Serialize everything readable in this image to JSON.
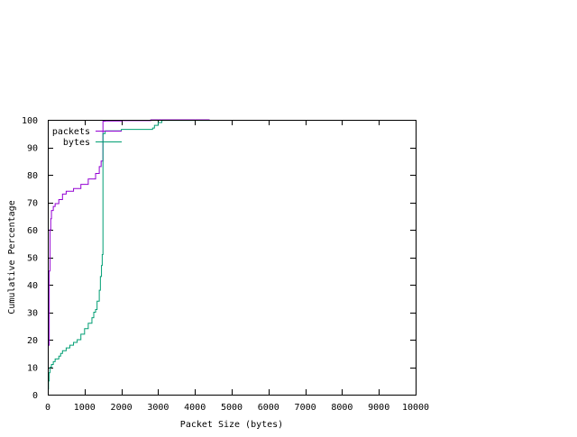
{
  "chart_data": {
    "type": "line",
    "title": "",
    "xlabel": "Packet Size (bytes)",
    "ylabel": "Cumulative Percentage",
    "xlim": [
      0,
      10000
    ],
    "ylim": [
      0,
      100
    ],
    "x_ticks": [
      "0",
      "1000",
      "2000",
      "3000",
      "4000",
      "5000",
      "6000",
      "7000",
      "8000",
      "9000",
      "10000"
    ],
    "y_ticks": [
      "0",
      "10",
      "20",
      "30",
      "40",
      "50",
      "60",
      "70",
      "80",
      "90",
      "100"
    ],
    "x_tick_values": [
      0,
      1000,
      2000,
      3000,
      4000,
      5000,
      6000,
      7000,
      8000,
      9000,
      10000
    ],
    "y_tick_values": [
      0,
      10,
      20,
      30,
      40,
      50,
      60,
      70,
      80,
      90,
      100
    ],
    "grid": false,
    "legend_position": "top-left",
    "series": [
      {
        "name": "packets",
        "color": "#9400d3",
        "x": [
          0,
          40,
          40,
          60,
          60,
          80,
          80,
          100,
          100,
          150,
          200,
          300,
          400,
          500,
          700,
          900,
          1100,
          1300,
          1400,
          1450,
          1500,
          1500,
          1560,
          1560,
          2000,
          2000,
          2800,
          2800,
          4400
        ],
        "y": [
          18,
          20,
          45,
          45,
          60,
          60,
          64,
          65,
          67,
          68.5,
          69.5,
          71,
          73,
          74,
          75,
          76.5,
          78.5,
          80.5,
          83,
          85,
          86.5,
          99.5,
          99.5,
          99.6,
          99.6,
          99.7,
          99.7,
          100,
          100
        ]
      },
      {
        "name": "bytes",
        "color": "#009e73",
        "x": [
          0,
          20,
          40,
          60,
          100,
          150,
          200,
          300,
          350,
          400,
          500,
          600,
          700,
          800,
          900,
          1000,
          1100,
          1200,
          1250,
          1300,
          1340,
          1400,
          1430,
          1460,
          1480,
          1500,
          1500,
          1560,
          1560,
          2000,
          2000,
          2800,
          2850,
          2900,
          3000,
          3100,
          3100,
          4400
        ],
        "y": [
          2,
          5,
          8,
          10,
          11,
          12,
          13,
          14,
          15,
          16,
          17,
          18,
          19,
          20,
          22,
          24,
          26,
          28,
          30,
          31,
          34,
          38,
          43,
          47,
          51,
          52,
          95,
          95,
          96,
          96,
          96.5,
          96.5,
          97,
          98,
          99,
          99.5,
          99.8,
          100
        ]
      }
    ]
  }
}
